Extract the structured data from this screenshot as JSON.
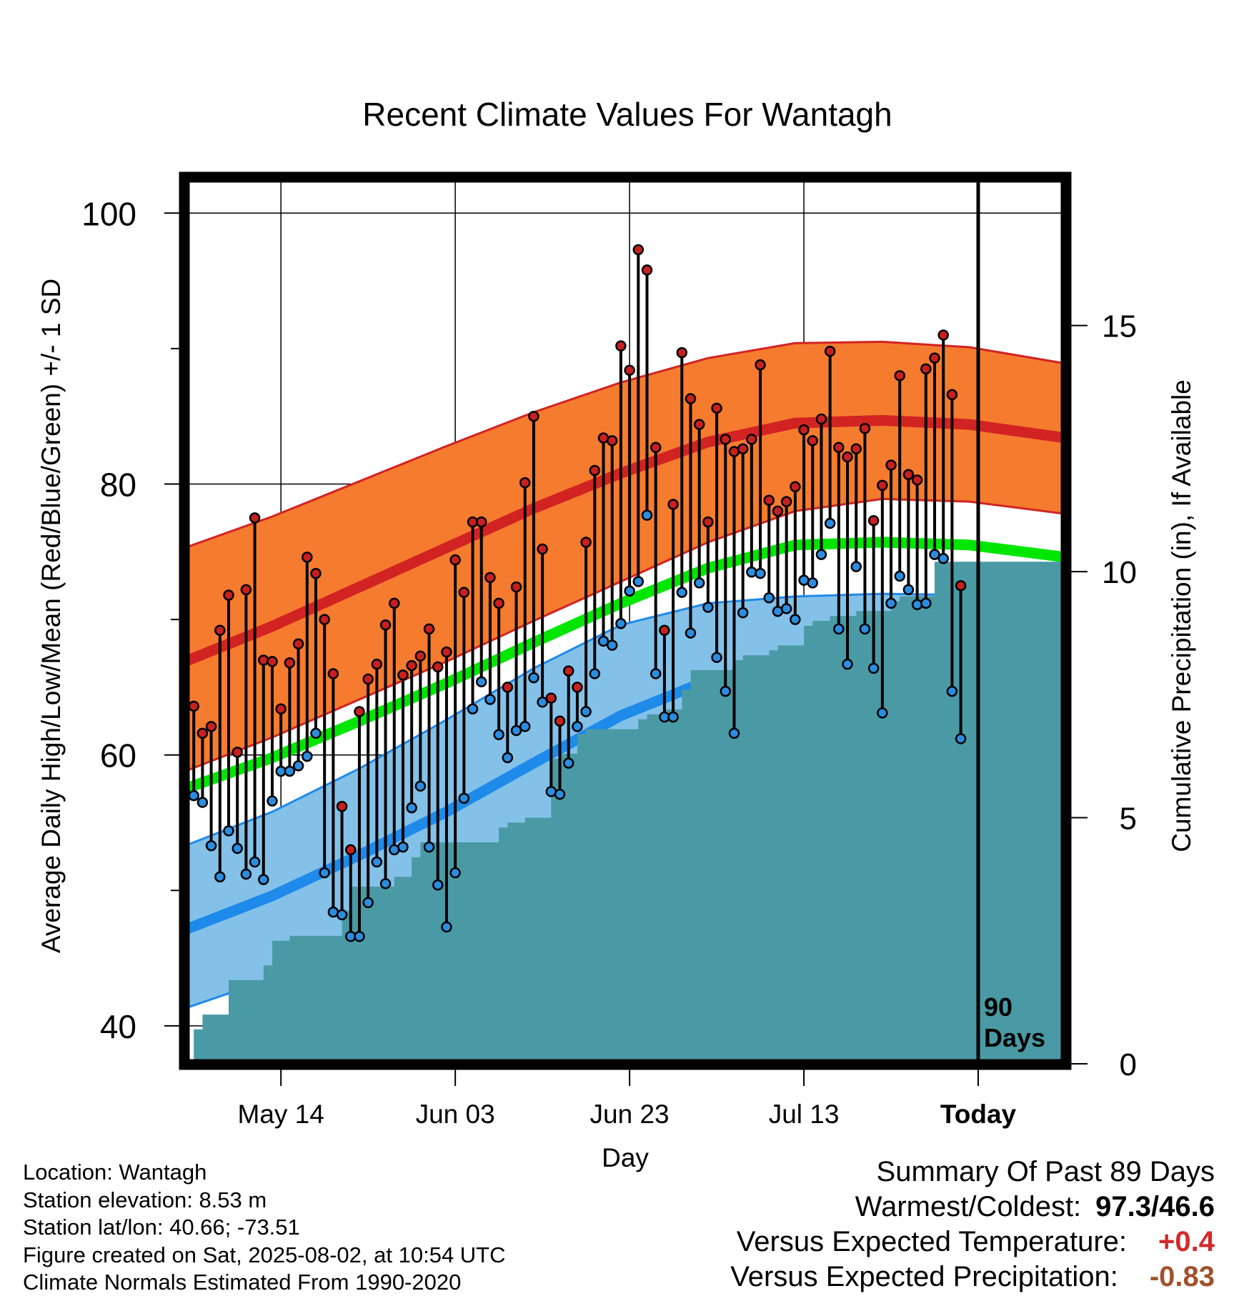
{
  "chart_data": {
    "type": "line",
    "title": "Recent Climate Values For Wantagh",
    "xlabel": "Day",
    "ylabel_left": "Average Daily High/Low/Mean (Red/Blue/Green) +/- 1 SD",
    "ylabel_right": "Cumulative Precipitation (in), If Available",
    "ylim_left": [
      37.2,
      102.6
    ],
    "ylim_right": [
      0,
      18
    ],
    "yticks_left": [
      40,
      60,
      80,
      100
    ],
    "yticks_left_minor": [
      50,
      70,
      90
    ],
    "yticks_right": [
      0,
      5,
      10,
      15
    ],
    "x_day_range": [
      0,
      101
    ],
    "x_ticks": [
      {
        "day": 11,
        "label": "May 14"
      },
      {
        "day": 31,
        "label": "Jun 03"
      },
      {
        "day": 51,
        "label": "Jun 23"
      },
      {
        "day": 71,
        "label": "Jul 13"
      },
      {
        "day": 91,
        "label": "Today"
      }
    ],
    "today_marker": {
      "day": 91,
      "label_line1": "90",
      "label_line2": "Days"
    },
    "colors": {
      "high_band": "#f57b2f",
      "high_mean": "#d22323",
      "mean": "#00e600",
      "low_band": "#84c1e8",
      "low_mean": "#1e8aea",
      "precip": "#4a9aa5",
      "high_dot": "#c81f1f",
      "low_dot": "#2b8de0",
      "warm_value": "#d42a2a",
      "precip_value": "#a0522d"
    },
    "normals": {
      "day": [
        0,
        10,
        20,
        30,
        40,
        50,
        60,
        70,
        80,
        90,
        101
      ],
      "high_mean": [
        66.9,
        69.5,
        72.4,
        75.3,
        78.2,
        80.8,
        83.1,
        84.5,
        84.7,
        84.4,
        83.4
      ],
      "high_upper": [
        75.3,
        77.6,
        80.2,
        82.8,
        85.3,
        87.5,
        89.3,
        90.4,
        90.5,
        90.1,
        88.9
      ],
      "high_lower": [
        58.8,
        61.3,
        64.1,
        66.9,
        69.9,
        72.8,
        75.7,
        78.0,
        78.9,
        78.7,
        77.8
      ],
      "mean_normal": [
        57.5,
        59.8,
        62.5,
        65.3,
        68.3,
        71.2,
        73.8,
        75.5,
        75.7,
        75.5,
        74.6
      ],
      "low_mean": [
        47.1,
        49.6,
        52.6,
        55.8,
        59.4,
        62.9,
        65.5,
        66.9,
        67.3,
        67.0,
        66.2
      ],
      "low_upper": [
        53.3,
        55.8,
        59.0,
        62.6,
        66.4,
        69.6,
        71.2,
        71.7,
        71.9,
        71.8,
        71.1
      ],
      "low_lower": [
        41.3,
        43.5,
        46.1,
        49.2,
        53.0,
        56.8,
        59.9,
        61.6,
        62.2,
        62.1,
        61.1
      ]
    },
    "daily": {
      "high": [
        63.6,
        61.6,
        62.1,
        69.2,
        71.8,
        60.2,
        72.2,
        77.5,
        67.0,
        66.9,
        63.4,
        66.8,
        68.2,
        74.6,
        73.4,
        70.0,
        66.0,
        56.2,
        53.0,
        63.2,
        65.6,
        66.7,
        69.6,
        71.2,
        65.9,
        66.6,
        67.3,
        69.3,
        66.5,
        67.6,
        74.4,
        72.0,
        77.2,
        77.2,
        73.1,
        71.2,
        65.0,
        72.4,
        80.1,
        85.0,
        75.2,
        64.2,
        62.5,
        66.2,
        65.0,
        75.7,
        81.0,
        83.4,
        83.2,
        90.2,
        88.4,
        97.3,
        95.8,
        82.7,
        69.2,
        78.5,
        89.7,
        86.3,
        84.4,
        77.2,
        85.6,
        83.3,
        82.4,
        82.6,
        83.3,
        88.8,
        78.8,
        78.0,
        78.7,
        79.8,
        84.0,
        83.2,
        84.8,
        89.8,
        82.7,
        82.0,
        82.6,
        84.1,
        77.3,
        79.9,
        81.4,
        88.0,
        80.7,
        80.3,
        88.5,
        89.3,
        91.0,
        86.6,
        72.5
      ],
      "low": [
        57.0,
        56.5,
        53.3,
        51.0,
        54.4,
        53.1,
        51.2,
        52.1,
        50.8,
        56.6,
        58.8,
        58.8,
        59.2,
        59.9,
        61.6,
        51.3,
        48.4,
        48.2,
        46.6,
        46.6,
        49.1,
        52.1,
        50.5,
        53.0,
        53.2,
        56.1,
        57.7,
        53.2,
        50.4,
        47.3,
        51.3,
        56.8,
        63.4,
        65.4,
        64.1,
        61.5,
        59.8,
        61.8,
        62.1,
        65.7,
        63.9,
        57.3,
        57.1,
        59.4,
        62.1,
        63.2,
        66.0,
        68.4,
        68.1,
        69.7,
        72.1,
        72.8,
        77.7,
        66.0,
        62.8,
        62.8,
        72.0,
        69.0,
        72.7,
        70.9,
        67.2,
        64.7,
        61.6,
        70.5,
        73.5,
        73.4,
        71.6,
        70.6,
        70.8,
        70.0,
        72.9,
        72.7,
        74.8,
        77.1,
        69.3,
        66.7,
        73.9,
        69.3,
        66.4,
        63.1,
        71.2,
        73.2,
        72.2,
        71.1,
        71.2,
        74.8,
        74.5,
        64.7,
        61.2
      ]
    },
    "precip_cumulative": {
      "day": [
        0,
        1,
        2,
        4,
        5,
        8,
        9,
        10,
        11,
        12,
        17,
        18,
        19,
        23,
        24,
        26,
        27,
        28,
        36,
        37,
        39,
        41,
        42,
        43,
        45,
        46,
        47,
        52,
        53,
        55,
        57,
        58,
        62,
        63,
        64,
        67,
        68,
        70,
        71,
        72,
        74,
        77,
        78,
        81,
        82,
        85,
        86,
        88,
        101
      ],
      "value": [
        0.0,
        0.7,
        1.0,
        1.0,
        1.7,
        1.7,
        2.0,
        2.5,
        2.5,
        2.6,
        2.6,
        3.1,
        3.6,
        3.6,
        3.8,
        4.2,
        4.5,
        4.5,
        4.8,
        4.9,
        5.0,
        5.0,
        6.2,
        6.3,
        6.7,
        6.8,
        6.8,
        7.0,
        7.1,
        7.2,
        7.6,
        8.0,
        8.0,
        8.2,
        8.3,
        8.4,
        8.5,
        8.5,
        8.9,
        9.0,
        9.1,
        9.2,
        9.2,
        9.4,
        9.5,
        9.5,
        10.2,
        10.2,
        10.2
      ]
    }
  },
  "location": {
    "location_line": "Location: Wantagh",
    "elevation_line": "Station elevation: 8.53 m",
    "latlon_line": "Station lat/lon: 40.66; -73.51",
    "created_line": "Figure created on Sat, 2025-08-02, at 10:54 UTC",
    "normals_line": "Climate Normals Estimated From 1990-2020"
  },
  "summary": {
    "header": "Summary Of Past 89 Days",
    "warmest_coldest_label": "Warmest/Coldest:",
    "warmest_coldest_value": "97.3/46.6",
    "temp_label": "Versus Expected Temperature:",
    "temp_value": "+0.4",
    "precip_label": "Versus Expected Precipitation:",
    "precip_value": "-0.83"
  }
}
